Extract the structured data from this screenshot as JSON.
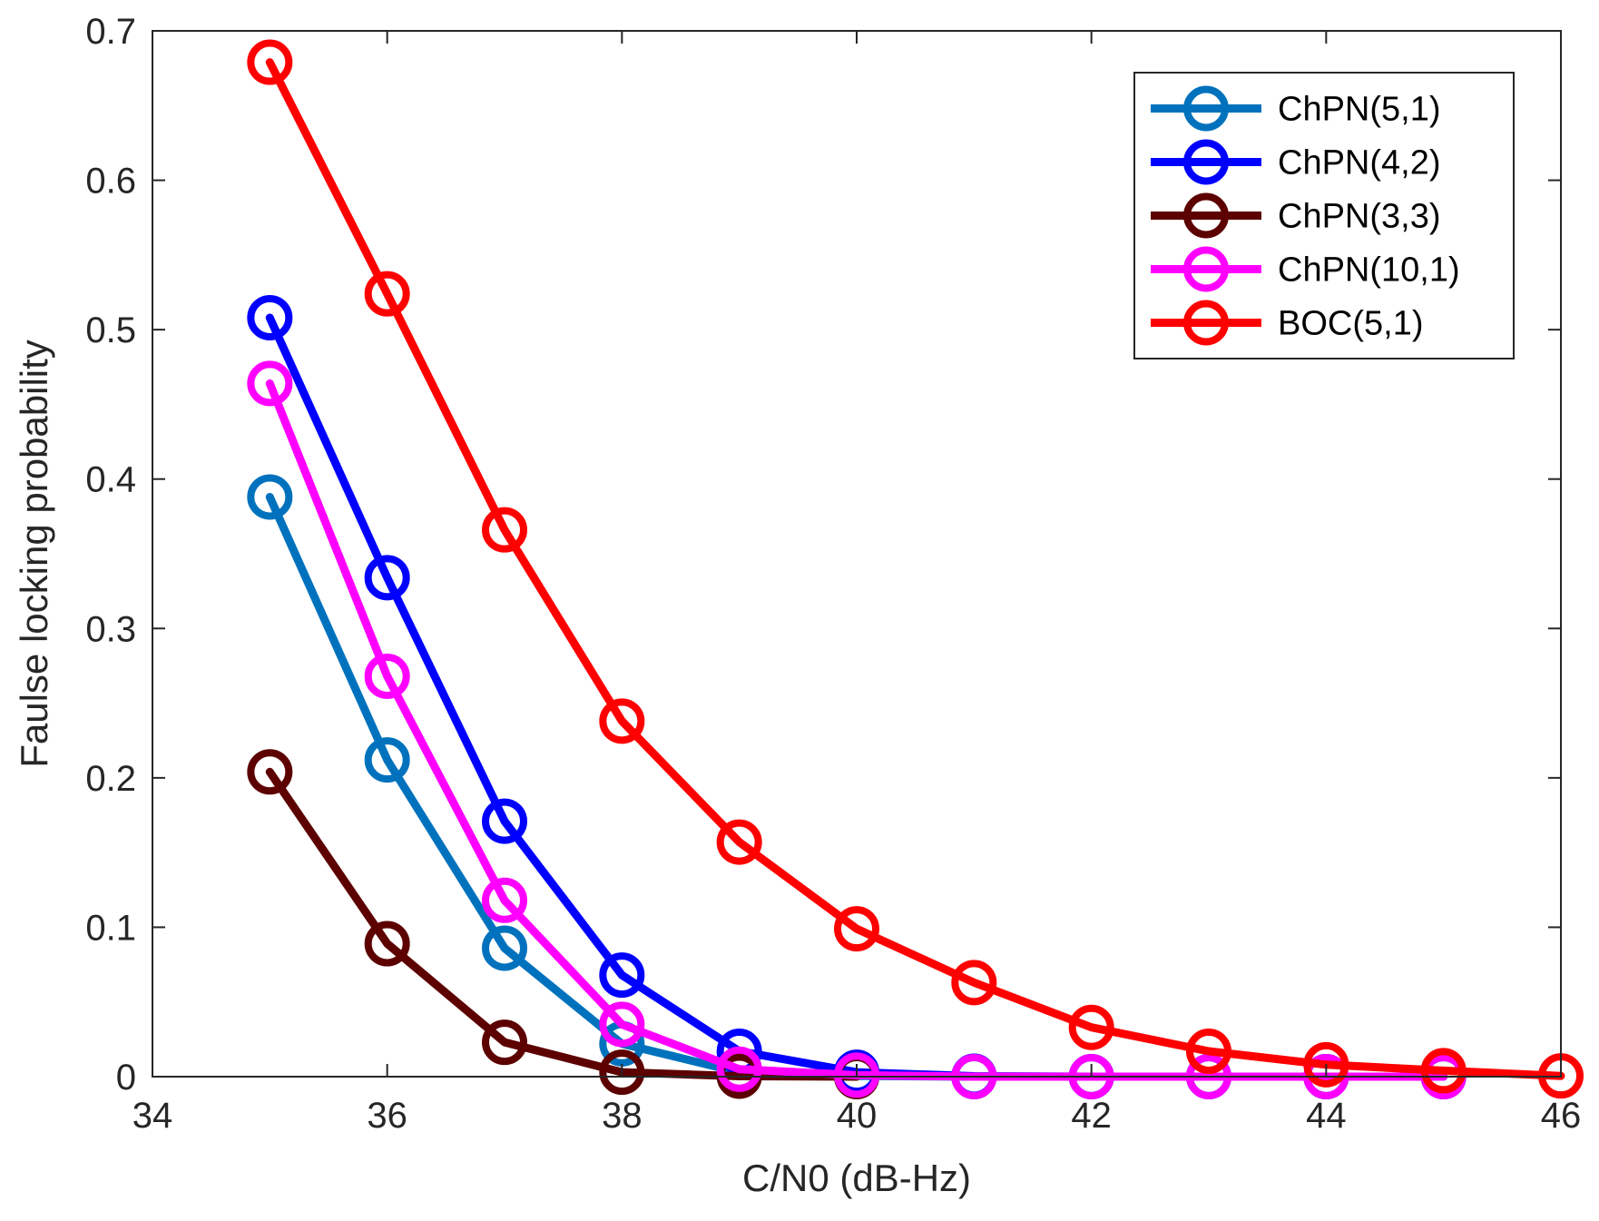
{
  "chart_data": {
    "type": "line",
    "title": "",
    "xlabel": "C/N0 (dB-Hz)",
    "ylabel": "Faulse locking probability",
    "xlim": [
      34,
      46
    ],
    "ylim": [
      0,
      0.7
    ],
    "xticks": [
      34,
      36,
      38,
      40,
      42,
      44,
      46
    ],
    "yticks": [
      0,
      0.1,
      0.2,
      0.3,
      0.4,
      0.5,
      0.6,
      0.7
    ],
    "xtick_labels": [
      "34",
      "36",
      "38",
      "40",
      "42",
      "44",
      "46"
    ],
    "ytick_labels": [
      "0",
      "0.1",
      "0.2",
      "0.3",
      "0.4",
      "0.5",
      "0.6",
      "0.7"
    ],
    "grid": false,
    "legend_position": "top-right",
    "x": [
      35,
      36,
      37,
      38,
      39,
      40,
      41,
      42,
      43,
      44,
      45,
      46
    ],
    "series": [
      {
        "name": "ChPN(5,1)",
        "color": "#0072BD",
        "x": [
          35,
          36,
          37,
          38,
          39,
          40,
          41,
          42,
          43,
          44,
          45
        ],
        "values": [
          0.388,
          0.212,
          0.086,
          0.022,
          0.003,
          0.0005,
          0,
          0,
          0,
          0,
          0
        ]
      },
      {
        "name": "ChPN(4,2)",
        "color": "#0000FF",
        "x": [
          35,
          36,
          37,
          38,
          39,
          40,
          41,
          42,
          43,
          44,
          45
        ],
        "values": [
          0.508,
          0.334,
          0.171,
          0.068,
          0.017,
          0.003,
          0.0003,
          0,
          0,
          0,
          0
        ]
      },
      {
        "name": "ChPN(3,3)",
        "color": "#5C0000",
        "x": [
          35,
          36,
          37,
          38,
          39,
          40
        ],
        "values": [
          0.204,
          0.089,
          0.023,
          0.003,
          0.0003,
          0
        ]
      },
      {
        "name": "ChPN(10,1)",
        "color": "#FF00FF",
        "x": [
          35,
          36,
          37,
          38,
          39,
          40,
          41,
          42,
          43,
          44,
          45
        ],
        "values": [
          0.464,
          0.268,
          0.118,
          0.035,
          0.005,
          0.001,
          0,
          0,
          0,
          0,
          0
        ]
      },
      {
        "name": "BOC(5,1)",
        "color": "#FF0000",
        "x": [
          35,
          36,
          37,
          38,
          39,
          40,
          41,
          42,
          43,
          44,
          45,
          46
        ],
        "values": [
          0.679,
          0.524,
          0.366,
          0.238,
          0.157,
          0.099,
          0.063,
          0.033,
          0.017,
          0.008,
          0.004,
          0.0005
        ]
      }
    ]
  }
}
